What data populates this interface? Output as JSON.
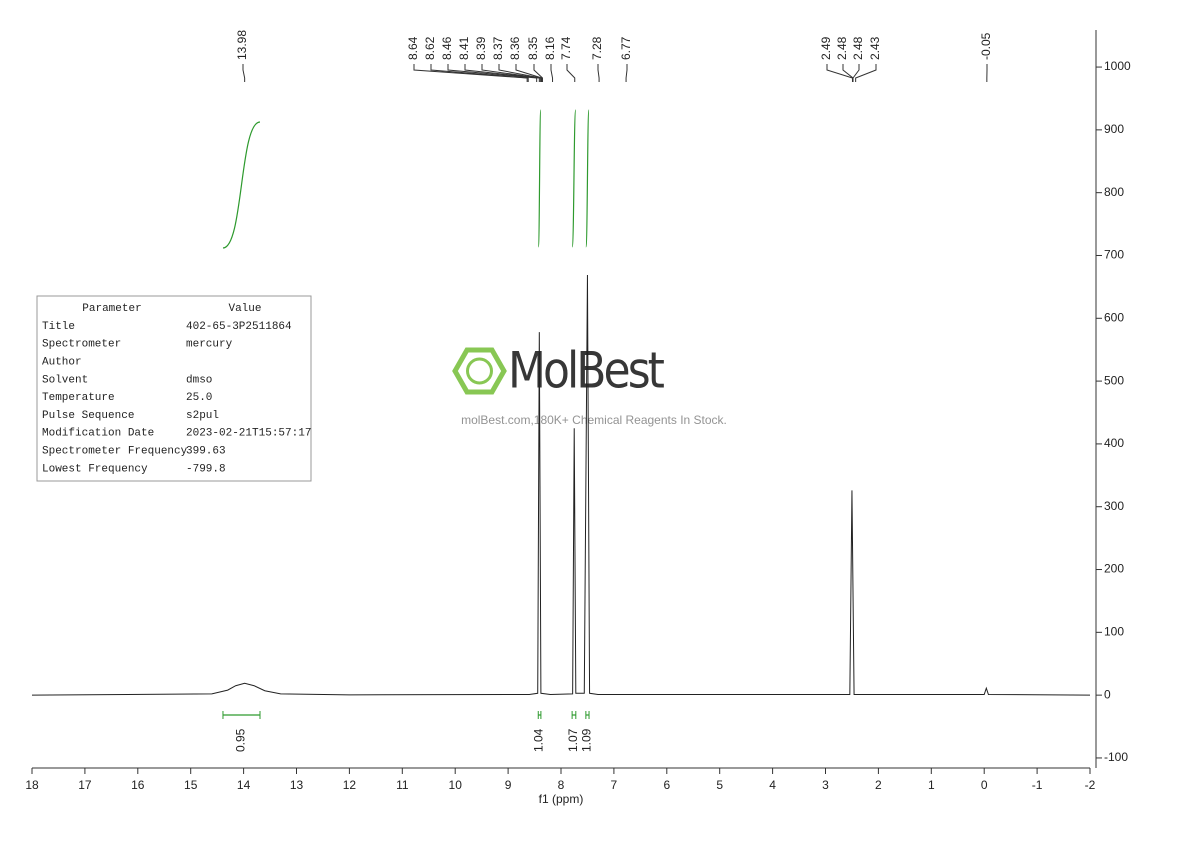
{
  "chart_data": {
    "type": "line",
    "x_label": "f1 (ppm)",
    "x": [
      18,
      14.6,
      14.3,
      14.15,
      13.98,
      13.8,
      13.6,
      13.3,
      12,
      8.6,
      8.44,
      8.41,
      8.38,
      8.2,
      7.78,
      7.75,
      7.72,
      7.56,
      7.5,
      7.46,
      7.3,
      2.54,
      2.5,
      2.46,
      0,
      -0.04,
      -0.08,
      -2
    ],
    "values": [
      0,
      2,
      8,
      15,
      19,
      15,
      7,
      2,
      0.5,
      1,
      3,
      578,
      3,
      1,
      2,
      425,
      3,
      3,
      669,
      3,
      1,
      1,
      326,
      1,
      1,
      11,
      1,
      0
    ],
    "color": "#222222",
    "xlim": [
      18,
      -2
    ],
    "xticks": [
      18,
      17,
      16,
      15,
      14,
      13,
      12,
      11,
      10,
      9,
      8,
      7,
      6,
      5,
      4,
      3,
      2,
      1,
      0,
      -1,
      -2
    ],
    "ylim": [
      -116,
      1059
    ],
    "yticks": [
      -100,
      0,
      100,
      200,
      300,
      400,
      500,
      600,
      700,
      800,
      900,
      1000
    ],
    "peak_labels": [
      13.98,
      8.64,
      8.62,
      8.46,
      8.41,
      8.39,
      8.37,
      8.36,
      8.35,
      8.16,
      7.74,
      7.28,
      6.77,
      2.49,
      2.48,
      2.48,
      2.43,
      -0.05
    ],
    "integrals": {
      "ranges": [
        [
          14.39,
          13.69
        ],
        [
          8.43,
          8.38
        ],
        [
          7.79,
          7.72
        ],
        [
          7.53,
          7.47
        ]
      ],
      "values": [
        0.95,
        1.04,
        1.07,
        1.09
      ]
    },
    "integral_color": "#2e9a2e"
  },
  "parameters": {
    "header": [
      "Parameter",
      "Value"
    ],
    "rows": [
      [
        "Title",
        "402-65-3P2511864"
      ],
      [
        "Spectrometer",
        "mercury"
      ],
      [
        "Author"
      ],
      [
        "Solvent",
        "dmso"
      ],
      [
        "Temperature",
        "25.0"
      ],
      [
        "Pulse Sequence",
        "s2pul"
      ],
      [
        "Modification Date",
        "2023-02-21T15:57:17"
      ],
      [
        "Spectrometer Frequency",
        "399.63"
      ],
      [
        "Lowest Frequency",
        "-799.8"
      ]
    ]
  },
  "watermark": {
    "logo": "MolBest",
    "text": "molBest.com,180K+ Chemical Reagents In Stock."
  }
}
